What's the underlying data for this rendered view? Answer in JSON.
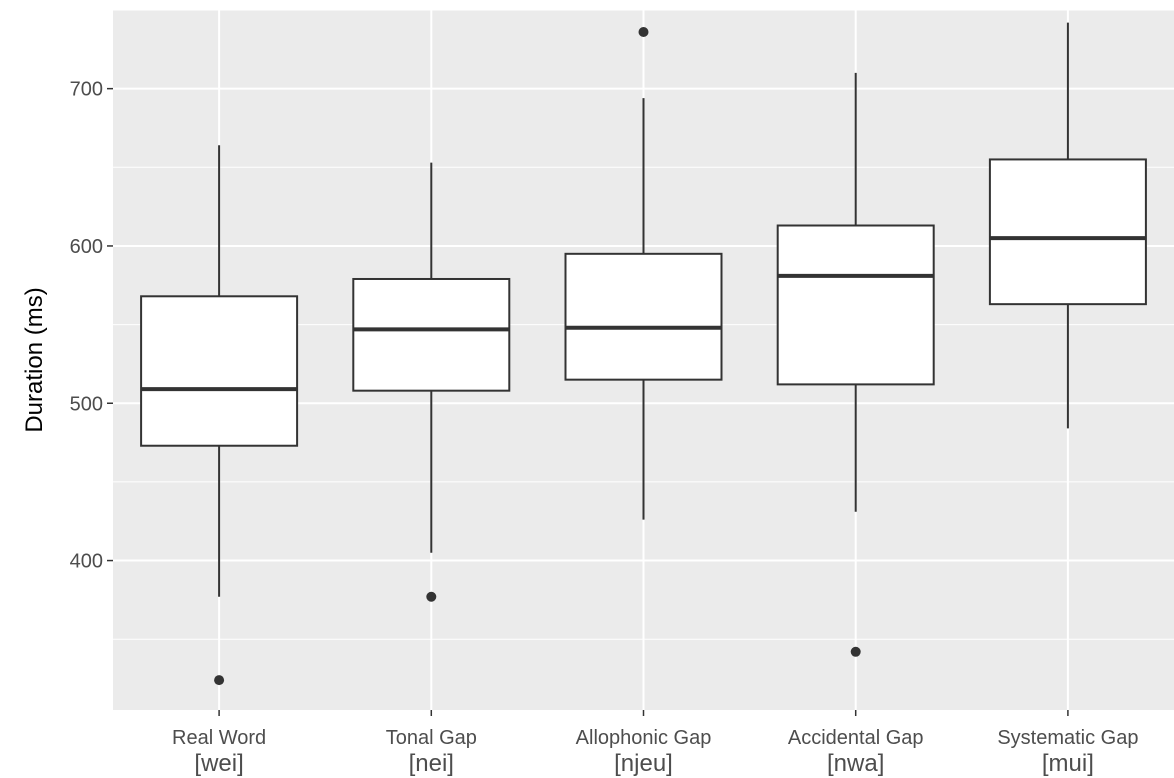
{
  "chart_data": {
    "type": "boxplot",
    "title": "",
    "xlabel": "",
    "ylabel": "Duration (ms)",
    "ylim": [
      305,
      750
    ],
    "y_ticks": [
      400,
      500,
      600,
      700
    ],
    "grid": true,
    "categories": [
      {
        "line1": "Real Word",
        "line2": "[wei]"
      },
      {
        "line1": "Tonal Gap",
        "line2": "[nei]"
      },
      {
        "line1": "Allophonic Gap",
        "line2": "[njeu]"
      },
      {
        "line1": "Accidental Gap",
        "line2": "[nwa]"
      },
      {
        "line1": "Systematic Gap",
        "line2": "[mui]"
      }
    ],
    "boxes": [
      {
        "whisker_low": 377,
        "q1": 473,
        "median": 509,
        "q3": 568,
        "whisker_high": 664,
        "outliers": [
          324
        ]
      },
      {
        "whisker_low": 405,
        "q1": 508,
        "median": 547,
        "q3": 579,
        "whisker_high": 653,
        "outliers": [
          377
        ]
      },
      {
        "whisker_low": 426,
        "q1": 515,
        "median": 548,
        "q3": 595,
        "whisker_high": 694,
        "outliers": [
          736
        ]
      },
      {
        "whisker_low": 431,
        "q1": 512,
        "median": 581,
        "q3": 613,
        "whisker_high": 710,
        "outliers": [
          342
        ]
      },
      {
        "whisker_low": 484,
        "q1": 563,
        "median": 605,
        "q3": 655,
        "whisker_high": 742,
        "outliers": []
      }
    ],
    "colors": {
      "panel_background": "#ebebeb",
      "grid_major": "#ffffff",
      "box_fill": "#ffffff",
      "box_stroke": "#333333",
      "outlier": "#333333"
    }
  }
}
